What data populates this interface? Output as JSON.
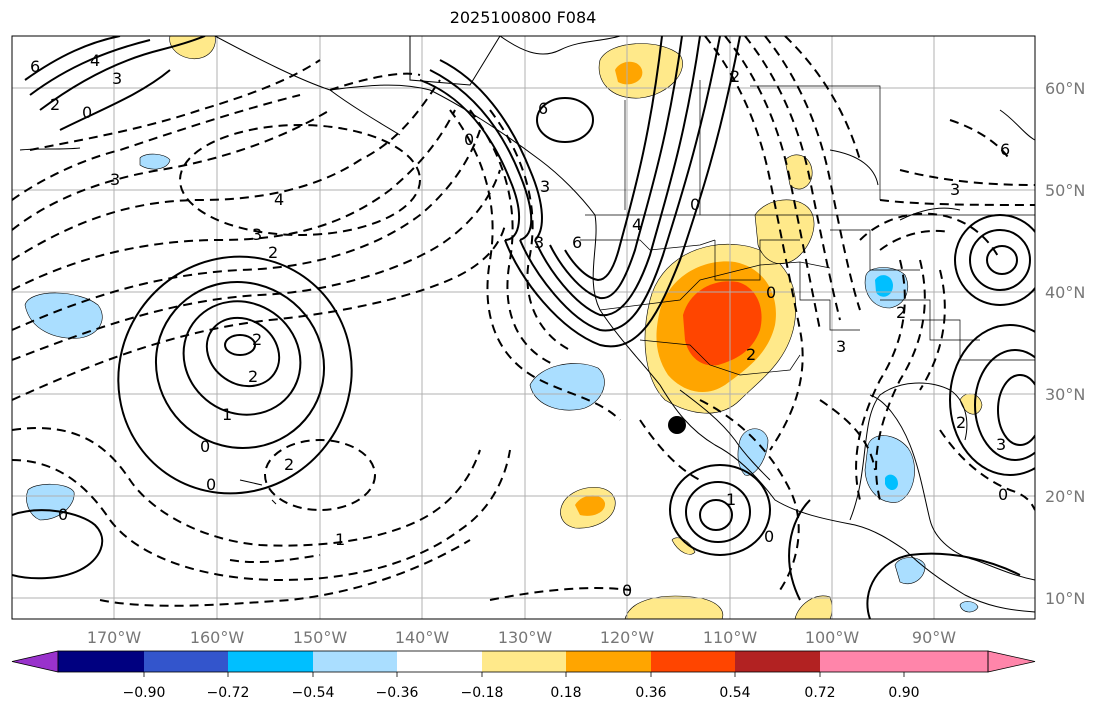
{
  "title": "2025100800 F084",
  "longitude_labels": [
    "170°W",
    "160°W",
    "150°W",
    "140°W",
    "130°W",
    "120°W",
    "110°W",
    "100°W",
    "90°W"
  ],
  "latitude_labels": [
    "60°N",
    "50°N",
    "40°N",
    "30°N",
    "20°N",
    "10°N"
  ],
  "colorbar": {
    "colors": [
      "#9932cc",
      "#000080",
      "#3355cc",
      "#00bfff",
      "#aadeff",
      "#ffffff",
      "#ffe98a",
      "#ffa500",
      "#ff4500",
      "#b22222",
      "#ff85aa"
    ],
    "tick_labels": [
      "−0.90",
      "−0.72",
      "−0.54",
      "−0.36",
      "−0.18",
      "0.18",
      "0.36",
      "0.54",
      "0.72",
      "0.90"
    ]
  },
  "contour_labels": [
    "6",
    "4",
    "3",
    "2",
    "0",
    "3",
    "4",
    "3",
    "2",
    "2",
    "2",
    "1",
    "0",
    "0",
    "2",
    "1",
    "0",
    "0",
    "3",
    "6",
    "3",
    "6",
    "0",
    "4",
    "2",
    "1",
    "3",
    "0",
    "2",
    "2",
    "6",
    "3",
    "2",
    "3",
    "0",
    "0",
    "0"
  ],
  "marker": "storm-center-dot"
}
